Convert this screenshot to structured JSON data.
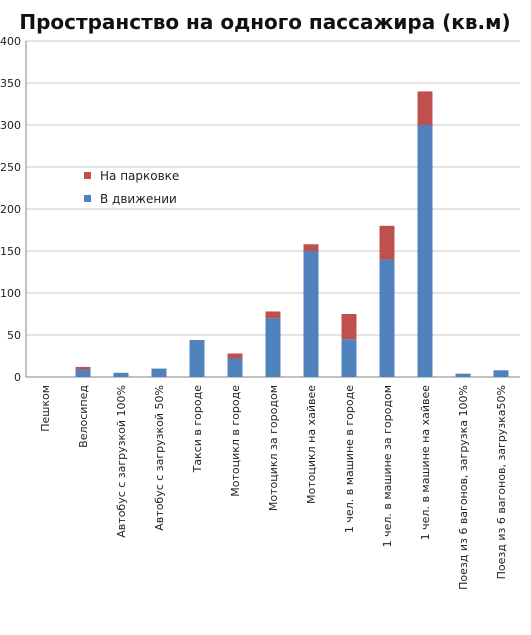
{
  "chart_data": {
    "type": "bar",
    "stacked": true,
    "title": "Пространство на одного пассажира (кв.м)",
    "xlabel": "",
    "ylabel": "",
    "ylim": [
      0,
      400
    ],
    "yticks": [
      0,
      50,
      100,
      150,
      200,
      250,
      300,
      350,
      400
    ],
    "grid": true,
    "legend_position": "left",
    "categories": [
      "Пешком",
      "Велосипед",
      "Автобус с загрузкой 100%",
      "Автобус с загрузкой 50%",
      "Такси в городе",
      "Мотоцикл в городе",
      "Мотоцикл за городом",
      "Мотоцикл на хайвее",
      "1 чел. в машине в городе",
      "1 чел. в машине за городом",
      "1 чел. в машине на хайвее",
      "Поезд из 6 вагонов, загрузка 100%",
      "Поезд из 6 вагонов, загрузка50%"
    ],
    "series": [
      {
        "name": "В движении",
        "color": "#4F81BD",
        "values": [
          0,
          9,
          5,
          10,
          44,
          22,
          70,
          150,
          45,
          140,
          300,
          4,
          8
        ]
      },
      {
        "name": "На парковке",
        "color": "#C0504D",
        "values": [
          0,
          3,
          0,
          0,
          0,
          6,
          8,
          8,
          30,
          40,
          40,
          0,
          0
        ]
      }
    ]
  }
}
